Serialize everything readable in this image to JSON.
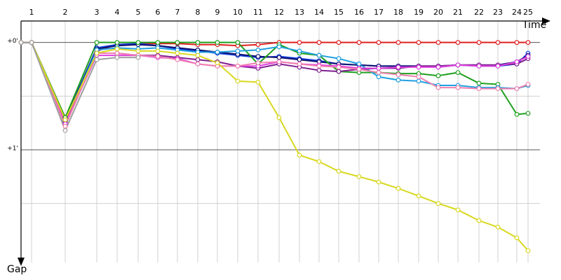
{
  "chart_data": {
    "type": "line",
    "x_label": "Time",
    "y_label": "Gap",
    "x": [
      0,
      15,
      63,
      108,
      137,
      167,
      195,
      223,
      252,
      280,
      309,
      338,
      368,
      397,
      425,
      453,
      482,
      510,
      538,
      567,
      595,
      623,
      653,
      680,
      707,
      723
    ],
    "xlim": [
      0,
      760
    ],
    "xticks": [
      {
        "value": 15,
        "label": "1"
      },
      {
        "value": 63,
        "label": "2"
      },
      {
        "value": 108,
        "label": "3"
      },
      {
        "value": 137,
        "label": "4"
      },
      {
        "value": 167,
        "label": "5"
      },
      {
        "value": 195,
        "label": "6"
      },
      {
        "value": 223,
        "label": "7"
      },
      {
        "value": 252,
        "label": "8"
      },
      {
        "value": 280,
        "label": "9"
      },
      {
        "value": 309,
        "label": "10"
      },
      {
        "value": 338,
        "label": "11"
      },
      {
        "value": 368,
        "label": "12"
      },
      {
        "value": 397,
        "label": "13"
      },
      {
        "value": 425,
        "label": "14"
      },
      {
        "value": 453,
        "label": "15"
      },
      {
        "value": 482,
        "label": "16"
      },
      {
        "value": 510,
        "label": "17"
      },
      {
        "value": 538,
        "label": "18"
      },
      {
        "value": 567,
        "label": "19"
      },
      {
        "value": 595,
        "label": "20"
      },
      {
        "value": 623,
        "label": "21"
      },
      {
        "value": 653,
        "label": "22"
      },
      {
        "value": 680,
        "label": "23"
      },
      {
        "value": 707,
        "label": "24"
      },
      {
        "value": 723,
        "label": "25"
      }
    ],
    "ylim": [
      -0.2,
      2.05
    ],
    "yticks": [
      {
        "value": 0,
        "label": "+0'"
      },
      {
        "value": 1,
        "label": "+1'"
      }
    ],
    "minor_yticks": [
      0.5,
      1.5
    ],
    "y_inverted": true,
    "series": [
      {
        "color": "#e02020",
        "values": [
          0,
          0,
          0.7,
          0.08,
          0.02,
          0.01,
          0.01,
          0.01,
          0.02,
          0.02,
          0.03,
          0.02,
          0,
          0,
          0,
          0,
          0,
          0,
          0,
          0,
          0,
          0,
          0,
          0,
          0,
          0
        ]
      },
      {
        "color": "#1040e0",
        "values": [
          0,
          0,
          0.72,
          0.05,
          0.02,
          0.01,
          0.03,
          0.06,
          0.08,
          0.1,
          0.12,
          0.14,
          0.13,
          0.15,
          0.17,
          0.2,
          0.21,
          0.22,
          0.22,
          0.22,
          0.23,
          0.21,
          0.22,
          0.22,
          0.2,
          0.1
        ]
      },
      {
        "color": "#101070",
        "values": [
          0,
          0,
          0.73,
          0.06,
          0.03,
          0.02,
          0.03,
          0.05,
          0.07,
          0.09,
          0.11,
          0.13,
          0.14,
          0.16,
          0.18,
          0.2,
          0.21,
          0.22,
          0.22,
          0.22,
          0.22,
          0.21,
          0.21,
          0.21,
          0.18,
          0.12
        ]
      },
      {
        "color": "#20a020",
        "values": [
          0,
          0,
          0.7,
          0,
          0,
          0,
          0,
          0,
          0,
          0,
          0,
          0.2,
          0.02,
          0.1,
          0.12,
          0.27,
          0.28,
          0.28,
          0.29,
          0.29,
          0.31,
          0.28,
          0.38,
          0.39,
          0.67,
          0.66
        ]
      },
      {
        "color": "#20a0e0",
        "values": [
          0,
          0,
          0.74,
          0.07,
          0.05,
          0.06,
          0.05,
          0.07,
          0.09,
          0.09,
          0.08,
          0.07,
          0.04,
          0.08,
          0.12,
          0.15,
          0.2,
          0.32,
          0.35,
          0.36,
          0.4,
          0.4,
          0.42,
          0.42,
          0.43,
          0.4
        ]
      },
      {
        "color": "#802090",
        "values": [
          0,
          0,
          0.75,
          0.1,
          0.1,
          0.12,
          0.12,
          0.14,
          0.16,
          0.18,
          0.22,
          0.24,
          0.2,
          0.23,
          0.26,
          0.27,
          0.25,
          0.24,
          0.24,
          0.22,
          0.22,
          0.21,
          0.21,
          0.21,
          0.2,
          0.15
        ]
      },
      {
        "color": "#e040e0",
        "values": [
          0,
          0,
          0.76,
          0.12,
          0.12,
          0.12,
          0.14,
          0.15,
          0.2,
          0.22,
          0.22,
          0.22,
          0.18,
          0.2,
          0.21,
          0.22,
          0.24,
          0.24,
          0.23,
          0.23,
          0.23,
          0.21,
          0.22,
          0.22,
          0.18,
          0.13
        ]
      },
      {
        "color": "#f080b0",
        "values": [
          0,
          0,
          0.78,
          0.1,
          0.1,
          0.12,
          0.13,
          0.16,
          0.2,
          0.22,
          0.22,
          0.19,
          0.18,
          0.2,
          0.22,
          0.23,
          0.25,
          0.28,
          0.3,
          0.32,
          0.42,
          0.42,
          0.43,
          0.43,
          0.43,
          0.39
        ]
      },
      {
        "color": "#d8d820",
        "values": [
          0,
          0,
          0.72,
          0.1,
          0.06,
          0.08,
          0.08,
          0.1,
          0.12,
          0.19,
          0.36,
          0.37,
          0.7,
          1.05,
          1.11,
          1.2,
          1.25,
          1.3,
          1.36,
          1.43,
          1.5,
          1.56,
          1.66,
          1.72,
          1.82,
          1.94
        ]
      },
      {
        "color": "#a0a0a0",
        "values": [
          0,
          0,
          0.82,
          0.16,
          0.14,
          0.14,
          null,
          null,
          null,
          null,
          null,
          null,
          null,
          null,
          null,
          null,
          null,
          null,
          null,
          null,
          null,
          null,
          null,
          null,
          null,
          null
        ]
      }
    ]
  }
}
